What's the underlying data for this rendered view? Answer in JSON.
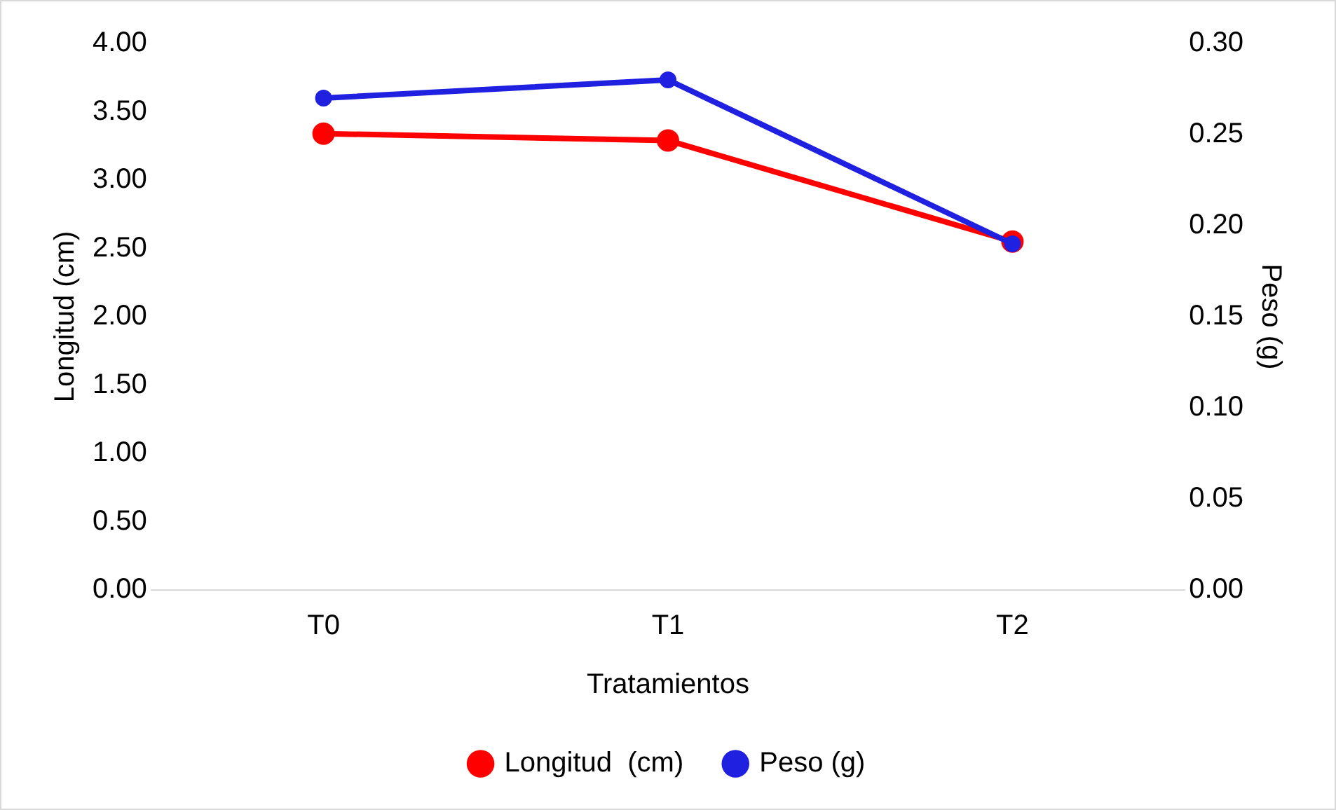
{
  "chart_data": {
    "type": "line",
    "xlabel": "Tratamientos",
    "ylabel": "Longitud (cm)",
    "y2label": "Peso (g)",
    "categories": [
      "T0",
      "T1",
      "T2"
    ],
    "series": [
      {
        "name": "Longitud  (cm)",
        "color": "#ff0000",
        "values": [
          3.34,
          3.29,
          2.55
        ]
      },
      {
        "name": "Peso (g)",
        "color": "#2020e0",
        "values": [
          0.27,
          0.28,
          0.19
        ],
        "axis": "y2"
      }
    ],
    "ylim": [
      0,
      4
    ],
    "yticks": [
      {
        "value": 0,
        "label": "0.00"
      },
      {
        "value": 0.5,
        "label": "0.50"
      },
      {
        "value": 1,
        "label": "1.00"
      },
      {
        "value": 1.5,
        "label": "1.50"
      },
      {
        "value": 2,
        "label": "2.00"
      },
      {
        "value": 2.5,
        "label": "2.50"
      },
      {
        "value": 3,
        "label": "3.00"
      },
      {
        "value": 3.5,
        "label": "3.50"
      },
      {
        "value": 4,
        "label": "4.00"
      }
    ],
    "y2lim": [
      0,
      0.3
    ],
    "y2ticks": [
      {
        "value": 0,
        "label": "0.00"
      },
      {
        "value": 0.05,
        "label": "0.05"
      },
      {
        "value": 0.1,
        "label": "0.10"
      },
      {
        "value": 0.15,
        "label": "0.15"
      },
      {
        "value": 0.2,
        "label": "0.20"
      },
      {
        "value": 0.25,
        "label": "0.25"
      },
      {
        "value": 0.3,
        "label": "0.30"
      }
    ],
    "grid": false,
    "legend": "bottom",
    "marker": "circle",
    "line_style": "solid"
  }
}
